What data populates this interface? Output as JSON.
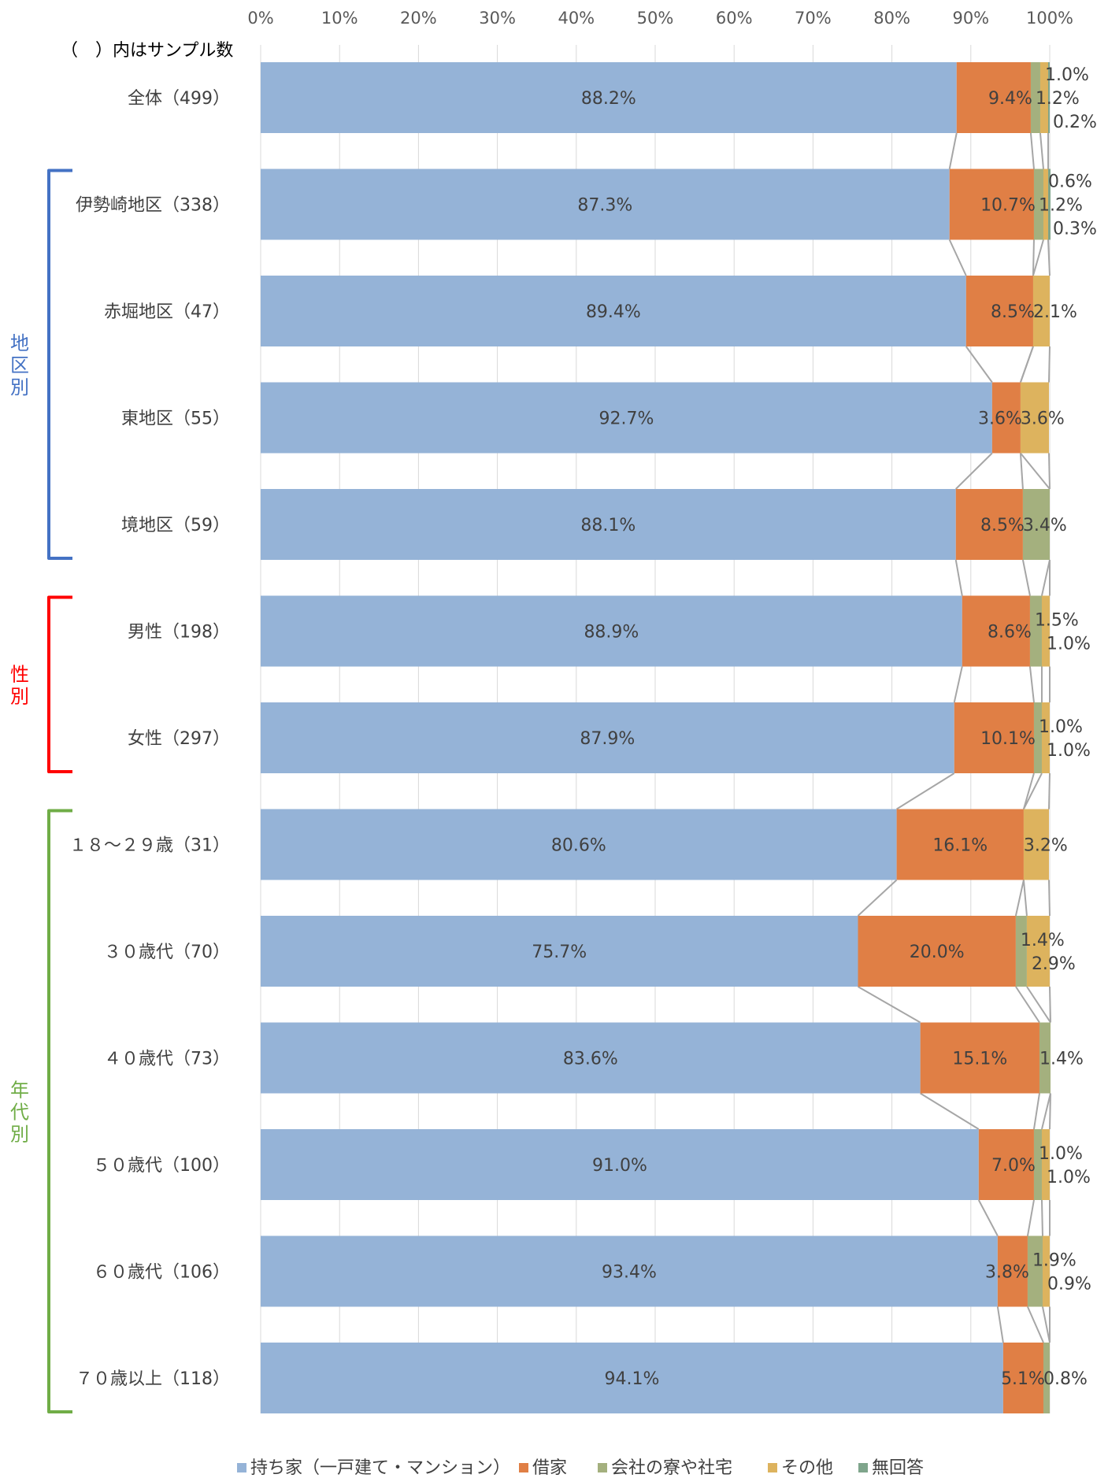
{
  "note": "（　）内はサンプル数",
  "chart_data": {
    "type": "bar",
    "orientation": "horizontal",
    "stacked": "100%",
    "xlim": [
      0,
      100
    ],
    "x_ticks": [
      "0%",
      "10%",
      "20%",
      "30%",
      "40%",
      "50%",
      "60%",
      "70%",
      "80%",
      "90%",
      "100%"
    ],
    "grid": true,
    "legend_position": "bottom",
    "series": [
      {
        "name": "持ち家（一戸建て・マンション）",
        "color": "#95b3d7"
      },
      {
        "name": "借家",
        "color": "#e07f45"
      },
      {
        "name": "会社の寮や社宅",
        "color": "#a4b07e"
      },
      {
        "name": "その他",
        "color": "#ddb35e"
      },
      {
        "name": "無回答",
        "color": "#7fa58c"
      }
    ],
    "rows": [
      {
        "label": "全体（499）",
        "values": [
          88.2,
          9.4,
          1.2,
          1.0,
          0.2
        ],
        "labels": [
          "88.2%",
          "9.4%",
          "1.2%",
          "1.0%",
          "0.2%"
        ]
      },
      {
        "label": "伊勢崎地区（338）",
        "values": [
          87.3,
          10.7,
          1.2,
          0.6,
          0.3
        ],
        "labels": [
          "87.3%",
          "10.7%",
          "1.2%",
          "0.6%",
          "0.3%"
        ]
      },
      {
        "label": "赤堀地区（47）",
        "values": [
          89.4,
          8.5,
          0,
          2.1,
          0
        ],
        "labels": [
          "89.4%",
          "8.5%",
          "",
          "2.1%",
          ""
        ]
      },
      {
        "label": "東地区（55）",
        "values": [
          92.7,
          3.6,
          0,
          3.6,
          0
        ],
        "labels": [
          "92.7%",
          "3.6%",
          "",
          "3.6%",
          ""
        ]
      },
      {
        "label": "境地区（59）",
        "values": [
          88.1,
          8.5,
          3.4,
          0,
          0
        ],
        "labels": [
          "88.1%",
          "8.5%",
          "3.4%",
          "",
          ""
        ]
      },
      {
        "label": "男性（198）",
        "values": [
          88.9,
          8.6,
          1.5,
          1.0,
          0
        ],
        "labels": [
          "88.9%",
          "8.6%",
          "1.5%",
          "1.0%",
          ""
        ]
      },
      {
        "label": "女性（297）",
        "values": [
          87.9,
          10.1,
          1.0,
          1.0,
          0
        ],
        "labels": [
          "87.9%",
          "10.1%",
          "1.0%",
          "1.0%",
          ""
        ]
      },
      {
        "label": "１８～２９歳（31）",
        "values": [
          80.6,
          16.1,
          0,
          3.2,
          0
        ],
        "labels": [
          "80.6%",
          "16.1%",
          "",
          "3.2%",
          ""
        ]
      },
      {
        "label": "３０歳代（70）",
        "values": [
          75.7,
          20.0,
          1.4,
          2.9,
          0
        ],
        "labels": [
          "75.7%",
          "20.0%",
          "1.4%",
          "2.9%",
          ""
        ]
      },
      {
        "label": "４０歳代（73）",
        "values": [
          83.6,
          15.1,
          1.4,
          0,
          0
        ],
        "labels": [
          "83.6%",
          "15.1%",
          "1.4%",
          "",
          ""
        ]
      },
      {
        "label": "５０歳代（100）",
        "values": [
          91.0,
          7.0,
          1.0,
          1.0,
          0
        ],
        "labels": [
          "91.0%",
          "7.0%",
          "1.0%",
          "1.0%",
          ""
        ]
      },
      {
        "label": "６０歳代（106）",
        "values": [
          93.4,
          3.8,
          1.9,
          0.9,
          0
        ],
        "labels": [
          "93.4%",
          "3.8%",
          "1.9%",
          "0.9%",
          ""
        ]
      },
      {
        "label": "７０歳以上（118）",
        "values": [
          94.1,
          5.1,
          0.8,
          0,
          0
        ],
        "labels": [
          "94.1%",
          "5.1%",
          "0.8%",
          "",
          ""
        ]
      }
    ],
    "groups": [
      {
        "label": "地区別",
        "color": "#4472c4",
        "first_row": 1,
        "last_row": 4
      },
      {
        "label": "性別",
        "color": "#ff0000",
        "first_row": 5,
        "last_row": 6
      },
      {
        "label": "年代別",
        "color": "#70ad47",
        "first_row": 7,
        "last_row": 12
      }
    ]
  }
}
